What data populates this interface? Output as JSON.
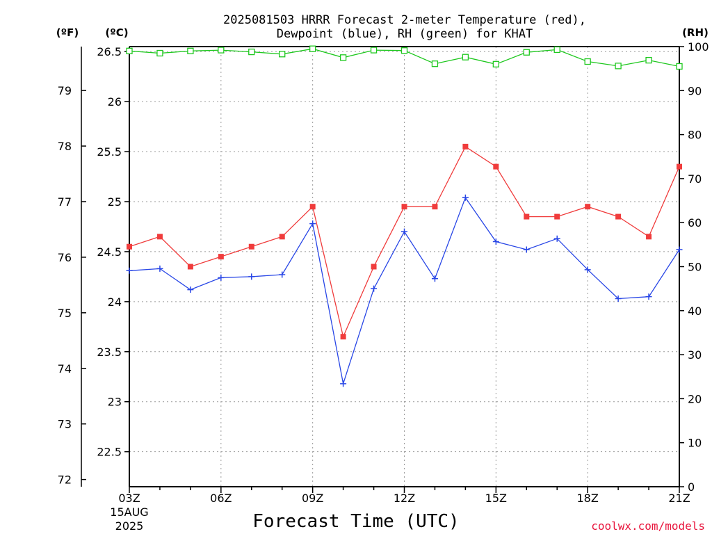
{
  "chart_data": {
    "type": "line",
    "title_lines": [
      "2025081503 HRRR Forecast 2-meter Temperature (red),",
      "Dewpoint (blue), RH (green) for KHAT"
    ],
    "xlabel": "Forecast Time (UTC)",
    "credit": "coolwx.com/models",
    "units": {
      "fahrenheit": "(ºF)",
      "celsius": "(ºC)",
      "rh": "(RH)"
    },
    "x_ticks": [
      "03Z",
      "06Z",
      "09Z",
      "12Z",
      "15Z",
      "18Z",
      "21Z"
    ],
    "date_label": [
      "15AUG",
      "2025"
    ],
    "x_hours": [
      3,
      4,
      5,
      6,
      7,
      8,
      9,
      10,
      11,
      12,
      13,
      14,
      15,
      16,
      17,
      18,
      19,
      20,
      21
    ],
    "celsius_axis": {
      "min": 22.15,
      "max": 26.55,
      "ticks": [
        "22.5",
        "23",
        "23.5",
        "24",
        "24.5",
        "25",
        "25.5",
        "26",
        "26.5"
      ],
      "tick_values": [
        22.5,
        23,
        23.5,
        24,
        24.5,
        25,
        25.5,
        26,
        26.5
      ]
    },
    "fahrenheit_axis": {
      "ticks": [
        "72",
        "73",
        "74",
        "75",
        "76",
        "77",
        "78",
        "79"
      ],
      "tick_values": [
        72,
        73,
        74,
        75,
        76,
        77,
        78,
        79
      ]
    },
    "rh_axis": {
      "min": 0,
      "max": 100,
      "ticks": [
        "0",
        "10",
        "20",
        "30",
        "40",
        "50",
        "60",
        "70",
        "80",
        "90",
        "100"
      ],
      "tick_values": [
        0,
        10,
        20,
        30,
        40,
        50,
        60,
        70,
        80,
        90,
        100
      ]
    },
    "series": [
      {
        "name": "Temperature",
        "axis": "celsius",
        "color": "#f03c3c",
        "marker": "filled-square",
        "values": [
          24.55,
          24.65,
          24.35,
          24.45,
          24.55,
          24.65,
          24.95,
          23.65,
          24.35,
          24.95,
          24.95,
          25.55,
          25.35,
          24.85,
          24.85,
          24.95,
          24.85,
          24.65,
          25.35
        ]
      },
      {
        "name": "Dewpoint",
        "axis": "celsius",
        "color": "#2846e6",
        "marker": "plus",
        "values": [
          24.31,
          24.33,
          24.12,
          24.24,
          24.25,
          24.27,
          24.78,
          23.18,
          24.13,
          24.7,
          24.23,
          25.04,
          24.6,
          24.52,
          24.63,
          24.32,
          24.03,
          24.05,
          24.52
        ]
      },
      {
        "name": "RH",
        "axis": "rh",
        "color": "#1ec81e",
        "marker": "open-square",
        "values": [
          99,
          98.5,
          99,
          99.2,
          98.8,
          98.3,
          99.5,
          97.5,
          99.2,
          99.1,
          96.1,
          97.6,
          96,
          98.7,
          99.3,
          96.6,
          95.6,
          96.9,
          95.5
        ]
      }
    ]
  }
}
